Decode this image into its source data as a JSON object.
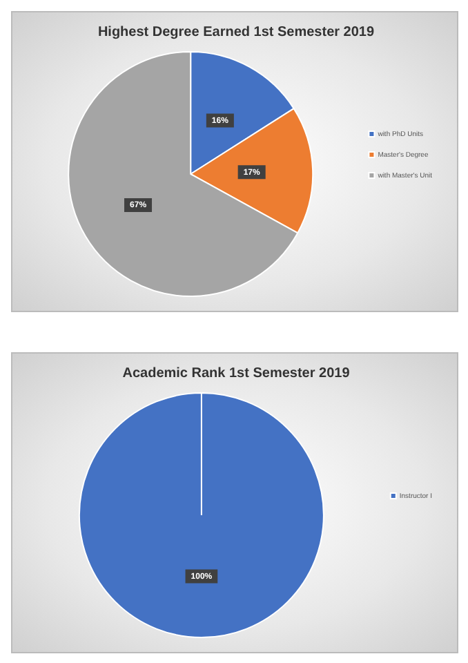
{
  "chart_data": [
    {
      "type": "pie",
      "title": "Highest Degree Earned 1st Semester 2019",
      "categories": [
        "with PhD Units",
        "Master's Degree",
        "with Master's Unit"
      ],
      "values": [
        16,
        17,
        67
      ],
      "colors": [
        "#4472c4",
        "#ed7d31",
        "#a5a5a5"
      ],
      "value_labels": [
        "16%",
        "17%",
        "67%"
      ],
      "legend": "right"
    },
    {
      "type": "pie",
      "title": "Academic Rank 1st Semester 2019",
      "categories": [
        "Instructor I"
      ],
      "values": [
        100
      ],
      "colors": [
        "#4472c4"
      ],
      "value_labels": [
        "100%"
      ],
      "legend": "right"
    }
  ]
}
